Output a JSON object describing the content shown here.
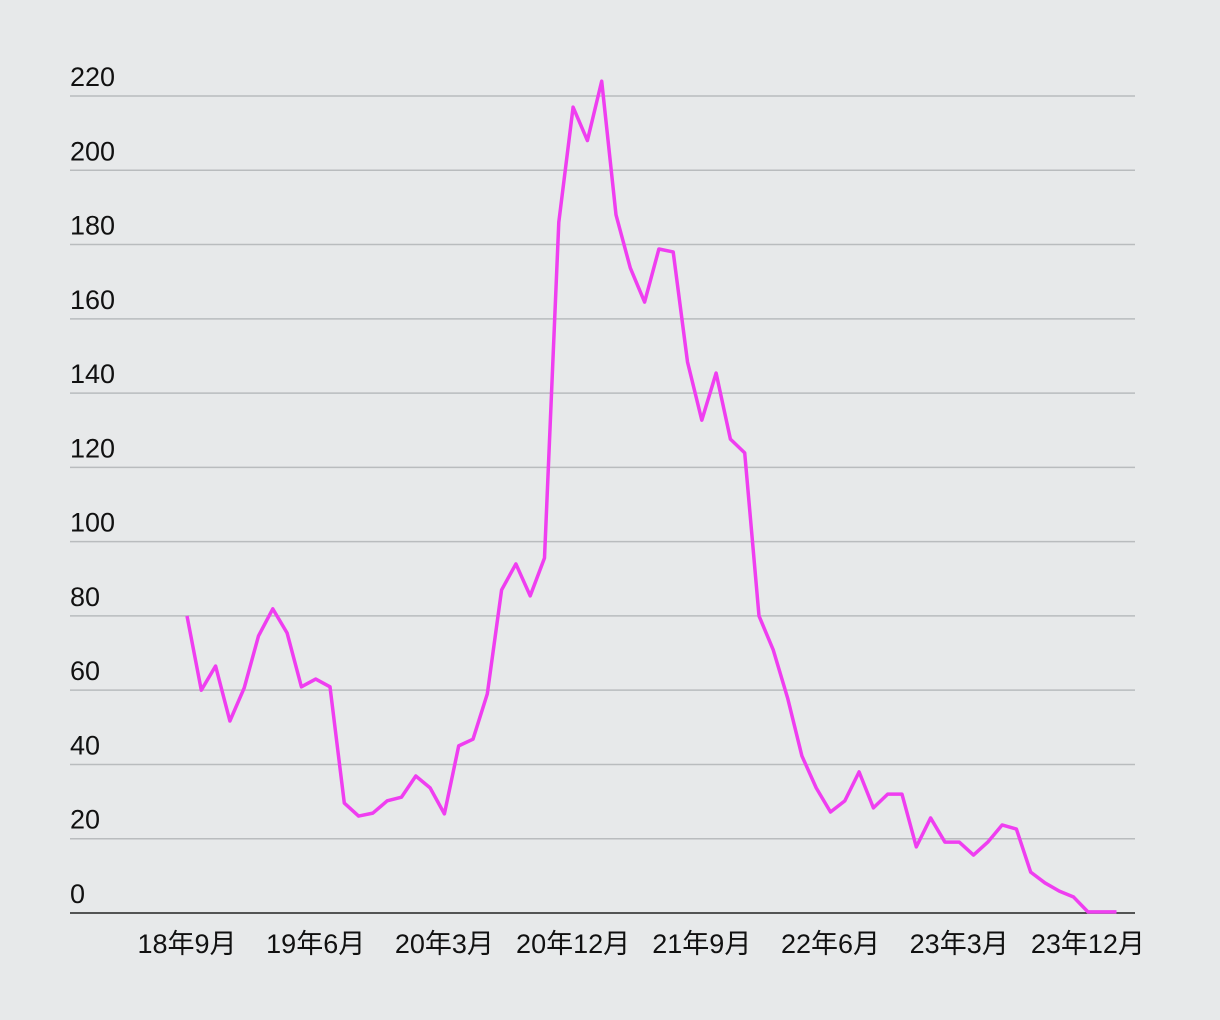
{
  "chart_data": {
    "type": "line",
    "categories": [
      "18年9月",
      null,
      null,
      null,
      null,
      null,
      null,
      null,
      null,
      "19年6月",
      null,
      null,
      null,
      null,
      null,
      null,
      null,
      null,
      "20年3月",
      null,
      null,
      null,
      null,
      null,
      null,
      null,
      null,
      "20年12月",
      null,
      null,
      null,
      null,
      null,
      null,
      null,
      null,
      "21年9月",
      null,
      null,
      null,
      null,
      null,
      null,
      null,
      null,
      "22年6月",
      null,
      null,
      null,
      null,
      null,
      null,
      null,
      null,
      "23年3月",
      null,
      null,
      null,
      null,
      null,
      null,
      null,
      null,
      "23年12月",
      null,
      null
    ],
    "series": [
      {
        "color": "#ef3ef0",
        "values": [
          80,
          60,
          66.5,
          51.7,
          60.6,
          74.6,
          81.9,
          75.4,
          60.9,
          63,
          60.9,
          29.6,
          26.1,
          26.9,
          30.2,
          31.2,
          36.9,
          33.7,
          26.7,
          45,
          46.8,
          59,
          87,
          94,
          85.4,
          95.6,
          186,
          217,
          208,
          224,
          188,
          173.7,
          164.5,
          178.8,
          178,
          148.4,
          132.7,
          145.4,
          127.6,
          123.9,
          80,
          70.8,
          57.9,
          42.3,
          33.7,
          27.2,
          30.2,
          38,
          28.3,
          32,
          32,
          17.8,
          25.6,
          19.1,
          19.1,
          15.6,
          19.1,
          23.7,
          22.6,
          11,
          8.1,
          5.9,
          4.3,
          0.3,
          0.3,
          0.3
        ]
      }
    ],
    "ylim": [
      0,
      220
    ],
    "yticks": [
      0,
      20,
      40,
      60,
      80,
      100,
      120,
      140,
      160,
      180,
      200,
      220
    ],
    "grid": true
  }
}
